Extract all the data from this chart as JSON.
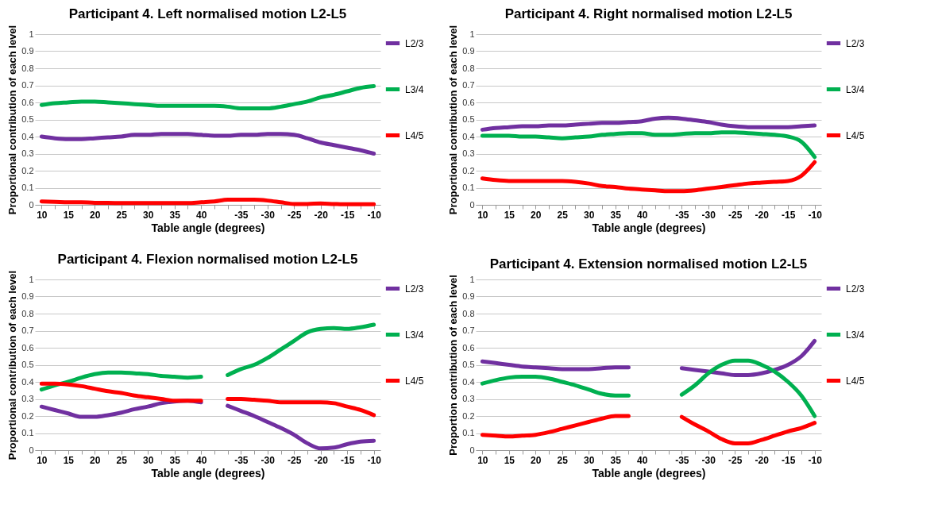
{
  "chart_data": [
    {
      "type": "line",
      "title": "Participant 4. Left normalised motion L2-L5",
      "xlabel": "Table angle (degrees)",
      "ylabel": "Proportional contribution of each level",
      "categories": [
        "10",
        null,
        "15",
        null,
        "20",
        null,
        "25",
        null,
        "30",
        null,
        "35",
        null,
        "40",
        null,
        null,
        "-35",
        null,
        "-30",
        null,
        "-25",
        null,
        "-20",
        null,
        "-15",
        null,
        "-10"
      ],
      "ylim": [
        0,
        1
      ],
      "yticks": [
        0,
        0.1,
        0.2,
        0.3,
        0.4,
        0.5,
        0.6,
        0.7,
        0.8,
        0.9,
        1
      ],
      "grid": "y",
      "legend": "right",
      "series": [
        {
          "name": "L2/3",
          "color": "#7030a0",
          "values": [
            0.4,
            0.39,
            0.385,
            0.385,
            0.39,
            0.395,
            0.4,
            0.41,
            0.41,
            0.415,
            0.415,
            0.415,
            0.41,
            0.405,
            0.405,
            0.41,
            0.41,
            0.415,
            0.415,
            0.41,
            0.39,
            0.365,
            0.35,
            0.335,
            0.32,
            0.3
          ]
        },
        {
          "name": "L3/4",
          "color": "#00b050",
          "values": [
            0.585,
            0.595,
            0.6,
            0.605,
            0.605,
            0.6,
            0.595,
            0.59,
            0.585,
            0.58,
            0.58,
            0.58,
            0.58,
            0.58,
            0.575,
            0.565,
            0.565,
            0.565,
            0.575,
            0.59,
            0.605,
            0.63,
            0.645,
            0.665,
            0.685,
            0.695
          ]
        },
        {
          "name": "L4/5",
          "color": "#ff0000",
          "values": [
            0.02,
            0.018,
            0.015,
            0.015,
            0.012,
            0.012,
            0.01,
            0.01,
            0.01,
            0.01,
            0.01,
            0.01,
            0.015,
            0.02,
            0.03,
            0.03,
            0.03,
            0.025,
            0.015,
            0.005,
            0.005,
            0.008,
            0.005,
            0.003,
            0.003,
            0.003
          ]
        }
      ]
    },
    {
      "type": "line",
      "title": "Participant 4. Right normalised motion L2-L5",
      "xlabel": "Table angle (degrees)",
      "ylabel": "Proportional contribution of each level",
      "categories": [
        "10",
        null,
        "15",
        null,
        "20",
        null,
        "25",
        null,
        "30",
        null,
        "35",
        null,
        "40",
        null,
        null,
        "-35",
        null,
        "-30",
        null,
        "-25",
        null,
        "-20",
        null,
        "-15",
        null,
        "-10"
      ],
      "ylim": [
        0,
        1
      ],
      "yticks": [
        0,
        0.1,
        0.2,
        0.3,
        0.4,
        0.5,
        0.6,
        0.7,
        0.8,
        0.9,
        1
      ],
      "grid": "y",
      "legend": "right",
      "series": [
        {
          "name": "L2/3",
          "color": "#7030a0",
          "values": [
            0.44,
            0.45,
            0.455,
            0.46,
            0.46,
            0.465,
            0.465,
            0.47,
            0.475,
            0.48,
            0.48,
            0.485,
            0.49,
            0.505,
            0.51,
            0.505,
            0.495,
            0.485,
            0.47,
            0.46,
            0.455,
            0.455,
            0.455,
            0.455,
            0.46,
            0.465
          ]
        },
        {
          "name": "L3/4",
          "color": "#00b050",
          "values": [
            0.405,
            0.405,
            0.405,
            0.4,
            0.4,
            0.395,
            0.39,
            0.395,
            0.4,
            0.41,
            0.415,
            0.42,
            0.42,
            0.41,
            0.41,
            0.415,
            0.42,
            0.42,
            0.425,
            0.425,
            0.42,
            0.415,
            0.41,
            0.4,
            0.37,
            0.28
          ]
        },
        {
          "name": "L4/5",
          "color": "#ff0000",
          "values": [
            0.155,
            0.145,
            0.14,
            0.14,
            0.14,
            0.14,
            0.14,
            0.135,
            0.125,
            0.11,
            0.105,
            0.095,
            0.09,
            0.085,
            0.08,
            0.08,
            0.085,
            0.095,
            0.105,
            0.115,
            0.125,
            0.13,
            0.135,
            0.14,
            0.17,
            0.25
          ]
        }
      ]
    },
    {
      "type": "line",
      "title": "Participant 4. Flexion normalised motion L2-L5",
      "xlabel": "Table angle (degrees)",
      "ylabel": "Proportional contribution of each level",
      "categories": [
        "10",
        null,
        "15",
        null,
        "20",
        null,
        "25",
        null,
        "30",
        null,
        "35",
        null,
        "40",
        null,
        null,
        "-35",
        null,
        "-30",
        null,
        "-25",
        null,
        "-20",
        null,
        "-15",
        null,
        "-10"
      ],
      "ylim": [
        0,
        1
      ],
      "yticks": [
        0,
        0.1,
        0.2,
        0.3,
        0.4,
        0.5,
        0.6,
        0.7,
        0.8,
        0.9,
        1
      ],
      "grid": "y",
      "legend": "right",
      "series": [
        {
          "name": "L2/3",
          "color": "#7030a0",
          "values": [
            0.255,
            0.235,
            0.215,
            0.195,
            0.195,
            0.205,
            0.22,
            0.24,
            0.255,
            0.275,
            0.285,
            0.29,
            0.28,
            null,
            0.26,
            0.23,
            0.2,
            0.165,
            0.13,
            0.09,
            0.04,
            0.01,
            0.015,
            0.035,
            0.05,
            0.055
          ]
        },
        {
          "name": "L3/4",
          "color": "#00b050",
          "values": [
            0.355,
            0.38,
            0.4,
            0.425,
            0.445,
            0.455,
            0.455,
            0.45,
            0.445,
            0.435,
            0.43,
            0.425,
            0.43,
            null,
            0.44,
            0.475,
            0.5,
            0.54,
            0.59,
            0.64,
            0.69,
            0.71,
            0.715,
            0.71,
            0.72,
            0.735
          ]
        },
        {
          "name": "L4/5",
          "color": "#ff0000",
          "values": [
            0.39,
            0.39,
            0.385,
            0.375,
            0.36,
            0.345,
            0.335,
            0.32,
            0.31,
            0.3,
            0.29,
            0.29,
            0.29,
            null,
            0.3,
            0.3,
            0.295,
            0.29,
            0.28,
            0.28,
            0.28,
            0.28,
            0.275,
            0.255,
            0.235,
            0.205
          ]
        }
      ]
    },
    {
      "type": "line",
      "title": "Participant 4. Extension normalised motion L2-L5",
      "xlabel": "Table angle (degrees)",
      "ylabel": "Proportion contribution of each level",
      "categories": [
        "10",
        null,
        "15",
        null,
        "20",
        null,
        "25",
        null,
        "30",
        null,
        "35",
        null,
        "40",
        null,
        null,
        "-35",
        null,
        "-30",
        null,
        "-25",
        null,
        "-20",
        null,
        "-15",
        null,
        "-10"
      ],
      "ylim": [
        0,
        1
      ],
      "yticks": [
        0,
        0.1,
        0.2,
        0.3,
        0.4,
        0.5,
        0.6,
        0.7,
        0.8,
        0.9,
        1
      ],
      "grid": "y",
      "legend": "right",
      "series": [
        {
          "name": "L2/3",
          "color": "#7030a0",
          "values": [
            0.52,
            0.51,
            0.5,
            0.49,
            0.485,
            0.48,
            0.475,
            0.475,
            0.475,
            0.48,
            0.485,
            0.485,
            null,
            null,
            null,
            0.48,
            0.47,
            0.46,
            0.45,
            0.44,
            0.44,
            0.45,
            0.47,
            0.5,
            0.55,
            0.64
          ]
        },
        {
          "name": "L3/4",
          "color": "#00b050",
          "values": [
            0.39,
            0.41,
            0.425,
            0.43,
            0.43,
            0.42,
            0.4,
            0.38,
            0.355,
            0.33,
            0.32,
            0.32,
            null,
            null,
            null,
            0.325,
            0.38,
            0.45,
            0.5,
            0.525,
            0.525,
            0.5,
            0.46,
            0.4,
            0.32,
            0.2
          ]
        },
        {
          "name": "L4/5",
          "color": "#ff0000",
          "values": [
            0.09,
            0.085,
            0.08,
            0.085,
            0.09,
            0.105,
            0.125,
            0.145,
            0.165,
            0.185,
            0.2,
            0.2,
            null,
            null,
            null,
            0.195,
            0.15,
            0.11,
            0.065,
            0.04,
            0.04,
            0.06,
            0.085,
            0.11,
            0.13,
            0.16
          ]
        }
      ]
    }
  ]
}
